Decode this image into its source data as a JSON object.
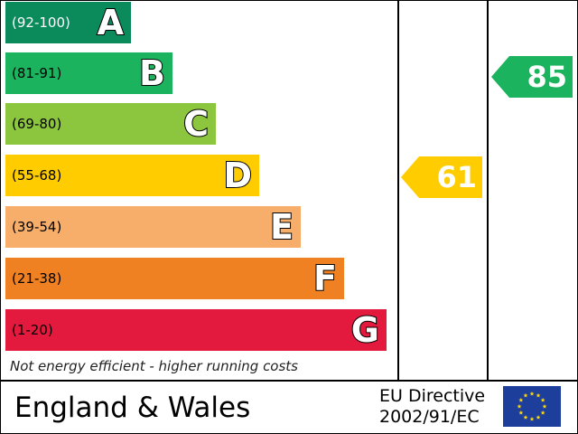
{
  "chart_data": {
    "type": "bar",
    "bands": [
      {
        "range": "(92-100)",
        "letter": "A",
        "min": 92,
        "max": 100,
        "color": "#0b8a5c"
      },
      {
        "range": "(81-91)",
        "letter": "B",
        "min": 81,
        "max": 91,
        "color": "#1bb35d"
      },
      {
        "range": "(69-80)",
        "letter": "C",
        "min": 69,
        "max": 80,
        "color": "#8cc63f"
      },
      {
        "range": "(55-68)",
        "letter": "D",
        "min": 55,
        "max": 68,
        "color": "#ffcc00"
      },
      {
        "range": "(39-54)",
        "letter": "E",
        "min": 39,
        "max": 54,
        "color": "#f7ae6a"
      },
      {
        "range": "(21-38)",
        "letter": "F",
        "min": 21,
        "max": 38,
        "color": "#f08122"
      },
      {
        "range": "(1-20)",
        "letter": "G",
        "min": 1,
        "max": 20,
        "color": "#e3193e"
      }
    ],
    "current": {
      "value": 61,
      "color": "#ffcc00"
    },
    "potential": {
      "value": 85,
      "color": "#1bb35d"
    },
    "footnote": "Not energy efficient - higher running costs"
  },
  "footer": {
    "country": "England & Wales",
    "directive_line1": "EU Directive",
    "directive_line2": "2002/91/EC"
  },
  "icons": {
    "eu_flag": "eu-flag-icon"
  }
}
